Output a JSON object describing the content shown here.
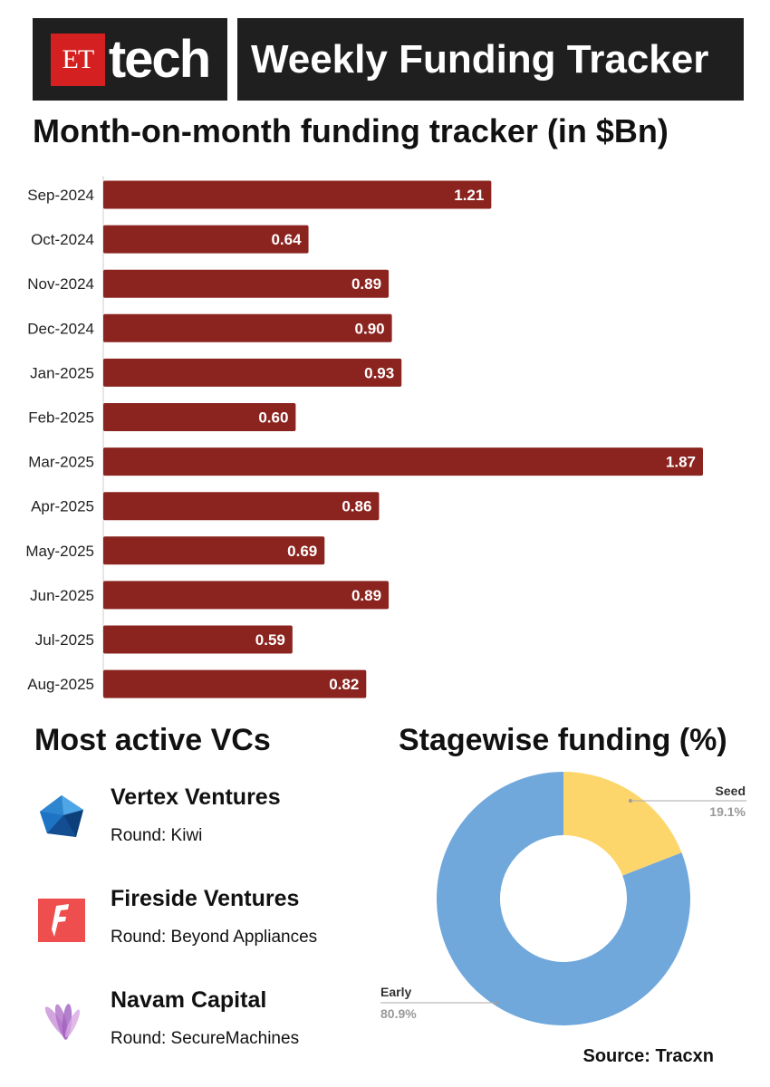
{
  "header": {
    "logo_badge": "ET",
    "logo_word": "tech",
    "title": "Weekly Funding Tracker"
  },
  "chart_data": [
    {
      "type": "bar",
      "orientation": "horizontal",
      "title": "Month-on-month funding tracker (in $Bn)",
      "categories": [
        "Sep-2024",
        "Oct-2024",
        "Nov-2024",
        "Dec-2024",
        "Jan-2025",
        "Feb-2025",
        "Mar-2025",
        "Apr-2025",
        "May-2025",
        "Jun-2025",
        "Jul-2025",
        "Aug-2025"
      ],
      "values": [
        1.21,
        0.64,
        0.89,
        0.9,
        0.93,
        0.6,
        1.87,
        0.86,
        0.69,
        0.89,
        0.59,
        0.82
      ],
      "value_labels": [
        "1.21",
        "0.64",
        "0.89",
        "0.90",
        "0.93",
        "0.60",
        "1.87",
        "0.86",
        "0.69",
        "0.89",
        "0.59",
        "0.82"
      ],
      "color": "#8b241f",
      "xlim": [
        0,
        1.87
      ],
      "grid": false,
      "data_labels": "inside-end"
    },
    {
      "type": "pie",
      "subtype": "donut",
      "title": "Stagewise funding (%)",
      "slices": [
        {
          "name": "Seed",
          "value": 19.1,
          "label": "19.1%",
          "color": "#fdd66b"
        },
        {
          "name": "Early",
          "value": 80.9,
          "label": "80.9%",
          "color": "#70a8dc"
        }
      ]
    }
  ],
  "vcs": {
    "heading": "Most active VCs",
    "items": [
      {
        "name": "Vertex Ventures",
        "round": "Round: Kiwi",
        "icon": "vertex-logo-icon"
      },
      {
        "name": "Fireside Ventures",
        "round": "Round: Beyond Appliances",
        "icon": "fireside-logo-icon"
      },
      {
        "name": "Navam Capital",
        "round": "Round: SecureMachines",
        "icon": "navam-logo-icon"
      }
    ]
  },
  "source": "Source: Tracxn"
}
